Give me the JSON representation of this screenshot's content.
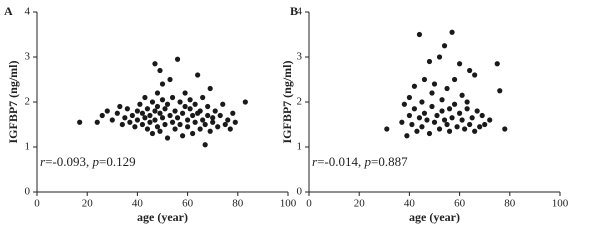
{
  "chart_data": [
    {
      "type": "scatter",
      "panel_label": "A",
      "ylabel": "IGFBP7 (ng/ml)",
      "xlabel": "age (year)",
      "color": "#1a1a1a",
      "xlim": [
        0,
        100
      ],
      "ylim": [
        0,
        4
      ],
      "xticks": [
        0,
        20,
        40,
        60,
        80,
        100
      ],
      "yticks": [
        0,
        1,
        2,
        3,
        4
      ],
      "annotation": [
        {
          "text": "r",
          "italic": true
        },
        {
          "text": "=-0.093, ",
          "italic": false
        },
        {
          "text": "p",
          "italic": true
        },
        {
          "text": "=0.129",
          "italic": false
        }
      ],
      "x": [
        17,
        24,
        26,
        28,
        30,
        32,
        33,
        34,
        35,
        36,
        37,
        38,
        39,
        40,
        40,
        41,
        42,
        42,
        43,
        43,
        44,
        44,
        45,
        45,
        46,
        46,
        47,
        47,
        47,
        48,
        48,
        48,
        49,
        49,
        49,
        50,
        50,
        50,
        51,
        51,
        52,
        52,
        53,
        53,
        54,
        54,
        55,
        55,
        56,
        56,
        57,
        57,
        58,
        58,
        59,
        59,
        60,
        60,
        61,
        61,
        62,
        62,
        63,
        63,
        64,
        64,
        65,
        65,
        66,
        66,
        67,
        67,
        68,
        68,
        69,
        69,
        70,
        70,
        71,
        72,
        73,
        74,
        75,
        76,
        77,
        78,
        79,
        83
      ],
      "y": [
        1.55,
        1.55,
        1.7,
        1.8,
        1.6,
        1.75,
        1.9,
        1.5,
        1.65,
        1.85,
        1.55,
        1.7,
        1.45,
        1.8,
        1.6,
        1.95,
        1.5,
        1.75,
        1.65,
        2.1,
        1.4,
        1.85,
        1.7,
        1.55,
        2.0,
        1.3,
        2.85,
        1.8,
        1.6,
        2.2,
        1.45,
        1.9,
        2.7,
        1.75,
        1.35,
        2.4,
        1.65,
        2.05,
        1.5,
        1.85,
        1.2,
        1.95,
        2.5,
        1.7,
        1.55,
        2.1,
        1.8,
        1.4,
        2.95,
        1.65,
        2.0,
        1.5,
        1.75,
        1.25,
        1.9,
        2.2,
        1.6,
        1.45,
        1.85,
        2.05,
        1.7,
        1.3,
        1.55,
        1.95,
        2.6,
        1.75,
        1.4,
        1.8,
        2.1,
        1.6,
        1.05,
        1.5,
        1.9,
        1.7,
        1.35,
        2.3,
        1.65,
        1.55,
        1.8,
        1.45,
        1.7,
        1.95,
        1.5,
        1.6,
        1.4,
        1.75,
        1.55,
        2.0
      ]
    },
    {
      "type": "scatter",
      "panel_label": "B",
      "ylabel": "IGFBP7 (ng/ml)",
      "xlabel": "age (year)",
      "color": "#1a1a1a",
      "xlim": [
        0,
        100
      ],
      "ylim": [
        0,
        4
      ],
      "xticks": [
        0,
        20,
        40,
        60,
        80,
        100
      ],
      "yticks": [
        0,
        1,
        2,
        3,
        4
      ],
      "annotation": [
        {
          "text": "r",
          "italic": true
        },
        {
          "text": "=-0.014, ",
          "italic": false
        },
        {
          "text": "p",
          "italic": true
        },
        {
          "text": "=0.887",
          "italic": false
        }
      ],
      "x": [
        31,
        37,
        38,
        39,
        40,
        40,
        41,
        42,
        42,
        43,
        44,
        44,
        45,
        45,
        46,
        46,
        47,
        48,
        48,
        49,
        49,
        50,
        50,
        51,
        52,
        52,
        53,
        53,
        54,
        54,
        55,
        55,
        56,
        56,
        57,
        57,
        58,
        58,
        59,
        60,
        60,
        61,
        61,
        62,
        63,
        63,
        64,
        64,
        65,
        66,
        66,
        67,
        68,
        69,
        70,
        72,
        75,
        76,
        78
      ],
      "y": [
        1.4,
        1.55,
        1.95,
        1.25,
        1.7,
        2.1,
        1.5,
        1.85,
        2.35,
        1.35,
        3.5,
        1.65,
        2.0,
        1.45,
        2.5,
        1.75,
        1.6,
        2.9,
        1.3,
        1.9,
        2.2,
        1.55,
        2.4,
        1.7,
        3.0,
        1.4,
        1.8,
        2.05,
        3.25,
        1.6,
        1.5,
        2.3,
        1.85,
        1.35,
        3.55,
        1.65,
        2.5,
        1.95,
        1.45,
        2.85,
        1.75,
        1.6,
        2.15,
        1.4,
        1.85,
        2.0,
        2.7,
        1.5,
        1.65,
        1.35,
        2.6,
        1.8,
        1.45,
        1.7,
        1.5,
        1.6,
        2.85,
        2.25,
        1.4
      ]
    }
  ]
}
